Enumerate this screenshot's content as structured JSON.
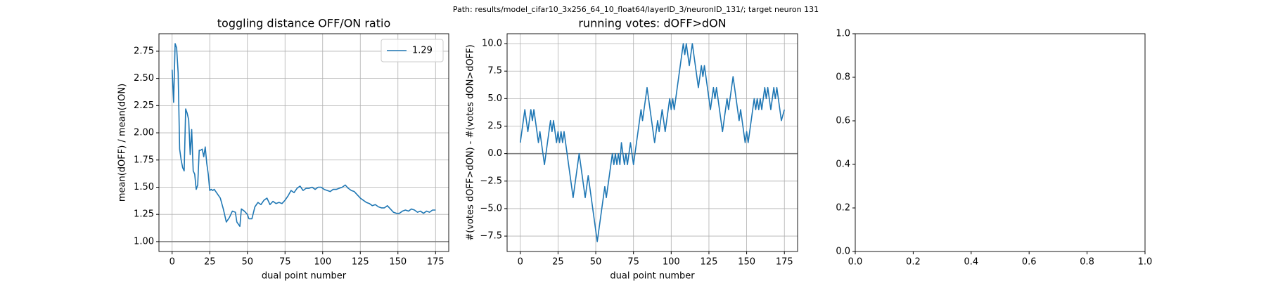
{
  "figure_title": "Path: results/model_cifar10_3x256_64_10_float64/layerID_3/neuronID_131/; target neuron 131",
  "chart_data": [
    {
      "type": "line",
      "title": "toggling distance OFF/ON ratio",
      "xlabel": "dual point number",
      "ylabel": "mean(dOFF) / mean(dON)",
      "x": [
        0,
        1,
        2,
        3,
        4,
        5,
        6,
        7,
        8,
        9,
        10,
        11,
        12,
        13,
        14,
        15,
        16,
        17,
        18,
        19,
        20,
        21,
        22,
        23,
        24,
        25,
        26,
        27,
        28,
        30,
        32,
        34,
        36,
        38,
        40,
        42,
        43,
        45,
        46,
        48,
        50,
        51,
        53,
        55,
        57,
        59,
        61,
        63,
        65,
        67,
        69,
        71,
        73,
        75,
        77,
        79,
        81,
        83,
        85,
        87,
        89,
        91,
        93,
        95,
        97,
        99,
        101,
        103,
        105,
        107,
        109,
        111,
        113,
        115,
        117,
        119,
        121,
        123,
        125,
        127,
        129,
        131,
        133,
        135,
        137,
        139,
        141,
        143,
        145,
        147,
        149,
        151,
        153,
        155,
        157,
        159,
        161,
        163,
        165,
        167,
        169,
        171,
        173,
        175
      ],
      "series": [
        {
          "name": "1.29",
          "color": "#1f77b4",
          "values": [
            2.58,
            2.28,
            2.82,
            2.78,
            2.55,
            1.85,
            1.75,
            1.68,
            1.65,
            2.22,
            2.18,
            2.12,
            1.8,
            2.03,
            1.65,
            1.62,
            1.48,
            1.52,
            1.84,
            1.84,
            1.85,
            1.78,
            1.87,
            1.72,
            1.62,
            1.47,
            1.48,
            1.47,
            1.48,
            1.44,
            1.4,
            1.3,
            1.18,
            1.22,
            1.28,
            1.27,
            1.18,
            1.14,
            1.3,
            1.28,
            1.25,
            1.21,
            1.21,
            1.32,
            1.36,
            1.34,
            1.38,
            1.4,
            1.34,
            1.37,
            1.35,
            1.36,
            1.35,
            1.38,
            1.42,
            1.47,
            1.45,
            1.49,
            1.51,
            1.47,
            1.49,
            1.49,
            1.5,
            1.48,
            1.5,
            1.5,
            1.48,
            1.47,
            1.46,
            1.48,
            1.48,
            1.49,
            1.5,
            1.52,
            1.49,
            1.47,
            1.46,
            1.43,
            1.4,
            1.38,
            1.36,
            1.35,
            1.33,
            1.34,
            1.32,
            1.31,
            1.31,
            1.33,
            1.3,
            1.27,
            1.26,
            1.26,
            1.28,
            1.29,
            1.28,
            1.3,
            1.29,
            1.27,
            1.28,
            1.26,
            1.28,
            1.27,
            1.29,
            1.29
          ]
        }
      ],
      "hline": 1.0,
      "hline_color": "#808080",
      "xlim": [
        -8.75,
        183.75
      ],
      "xticks": [
        0,
        25,
        50,
        75,
        100,
        125,
        150,
        175
      ],
      "ylim": [
        0.909,
        2.911
      ],
      "yticks": [
        {
          "value": 1.0,
          "label": "1.00"
        },
        {
          "value": 1.25,
          "label": "1.25"
        },
        {
          "value": 1.5,
          "label": "1.50"
        },
        {
          "value": 1.75,
          "label": "1.75"
        },
        {
          "value": 2.0,
          "label": "2.00"
        },
        {
          "value": 2.25,
          "label": "2.25"
        },
        {
          "value": 2.5,
          "label": "2.50"
        },
        {
          "value": 2.75,
          "label": "2.75"
        }
      ],
      "grid": true,
      "legend": "upper right"
    },
    {
      "type": "line",
      "title": "running votes: dOFF>dON",
      "xlabel": "dual point number",
      "ylabel": "#(votes dOFF>dON) - #(votes dON>dOFF)",
      "x": [
        0,
        3,
        5,
        7,
        8,
        9,
        12,
        13,
        16,
        20,
        21,
        22,
        24,
        25,
        26,
        27,
        28,
        29,
        35,
        39,
        43,
        45,
        51,
        56,
        57,
        61,
        62,
        63,
        64,
        65,
        66,
        67,
        68,
        69,
        70,
        71,
        72,
        73,
        75,
        80,
        81,
        84,
        89,
        91,
        92,
        94,
        96,
        99,
        100,
        101,
        102,
        108,
        109,
        110,
        112,
        114,
        118,
        120,
        121,
        122,
        126,
        128,
        129,
        130,
        134,
        137,
        138,
        141,
        145,
        146,
        148,
        149,
        150,
        151,
        155,
        156,
        157,
        158,
        159,
        160,
        162,
        163,
        164,
        166,
        168,
        169,
        170,
        173,
        175
      ],
      "series": [
        {
          "name": null,
          "color": "#1f77b4",
          "values": [
            1,
            4,
            2,
            4,
            3,
            4,
            1,
            2,
            -1,
            3,
            2,
            3,
            1,
            2,
            1,
            2,
            1,
            2,
            -4,
            0,
            -4,
            -2,
            -8,
            -3,
            -4,
            0,
            -1,
            0,
            -1,
            0,
            -1,
            1,
            0,
            -1,
            0,
            -1,
            0,
            1,
            -1,
            4,
            3,
            6,
            1,
            3,
            2,
            4,
            2,
            5,
            4,
            5,
            4,
            10,
            9,
            10,
            8,
            10,
            6,
            8,
            7,
            8,
            4,
            6,
            5,
            6,
            2,
            5,
            4,
            7,
            3,
            4,
            2,
            1,
            2,
            1,
            5,
            4,
            5,
            4,
            5,
            4,
            6,
            5,
            6,
            4,
            6,
            5,
            6,
            3,
            4
          ]
        }
      ],
      "hline": 0,
      "hline_color": "#808080",
      "xlim": [
        -8.75,
        183.75
      ],
      "xticks": [
        0,
        25,
        50,
        75,
        100,
        125,
        150,
        175
      ],
      "ylim": [
        -8.9,
        10.9
      ],
      "yticks": [
        {
          "value": -7.5,
          "label": "−7.5"
        },
        {
          "value": -5.0,
          "label": "−5.0"
        },
        {
          "value": -2.5,
          "label": "−2.5"
        },
        {
          "value": 0,
          "label": "0.0"
        },
        2.5,
        {
          "value": 5.0,
          "label": "5.0"
        },
        7.5,
        {
          "value": 10.0,
          "label": "10.0"
        }
      ],
      "grid": true
    },
    {
      "type": "line",
      "x": [],
      "series": [],
      "xlim": [
        0,
        1
      ],
      "xticks": [
        {
          "value": 0,
          "label": "0.0"
        },
        0.2,
        0.4,
        0.6,
        0.8,
        {
          "value": 1,
          "label": "1.0"
        }
      ],
      "ylim": [
        0,
        1
      ],
      "yticks": [
        {
          "value": 0,
          "label": "0.0"
        },
        0.2,
        0.4,
        0.6,
        0.8,
        {
          "value": 1,
          "label": "1.0"
        }
      ],
      "grid": false
    }
  ]
}
